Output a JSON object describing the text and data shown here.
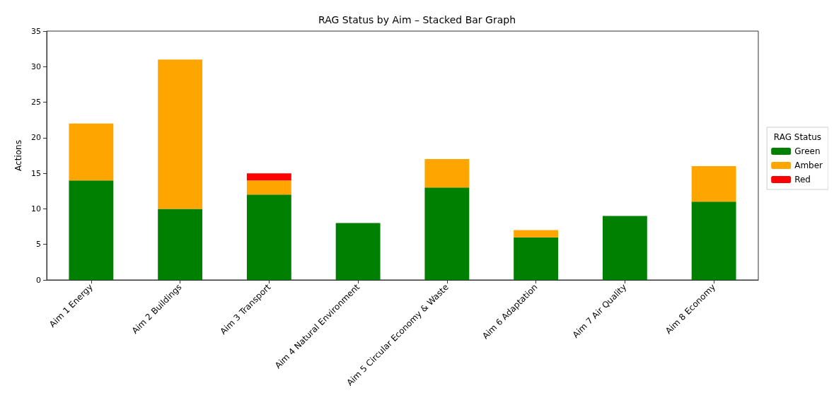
{
  "chart_data": {
    "type": "bar",
    "title": "RAG Status by Aim – Stacked Bar Graph",
    "ylabel": "Actions",
    "legend_title": "RAG Status",
    "categories": [
      "Aim 1 Energy",
      "Aim 2 Buildings",
      "Aim 3 Transport",
      "Aim 4 Natural Environment",
      "Aim 5 Circular Economy & Waste",
      "Aim 6 Adaptation",
      "Aim 7 Air Quality",
      "Aim 8 Economy"
    ],
    "series": [
      {
        "name": "Green",
        "color": "#008000",
        "values": [
          14,
          10,
          12,
          8,
          13,
          6,
          9,
          11
        ]
      },
      {
        "name": "Amber",
        "color": "#ffa500",
        "values": [
          8,
          21,
          2,
          0,
          4,
          1,
          0,
          5
        ]
      },
      {
        "name": "Red",
        "color": "#ff0000",
        "values": [
          0,
          0,
          1,
          0,
          0,
          0,
          0,
          0
        ]
      }
    ],
    "stacked": true,
    "ylim": [
      0,
      35
    ],
    "yticks": [
      0,
      5,
      10,
      15,
      20,
      25,
      30,
      35
    ],
    "grid": false,
    "legend": "right"
  }
}
